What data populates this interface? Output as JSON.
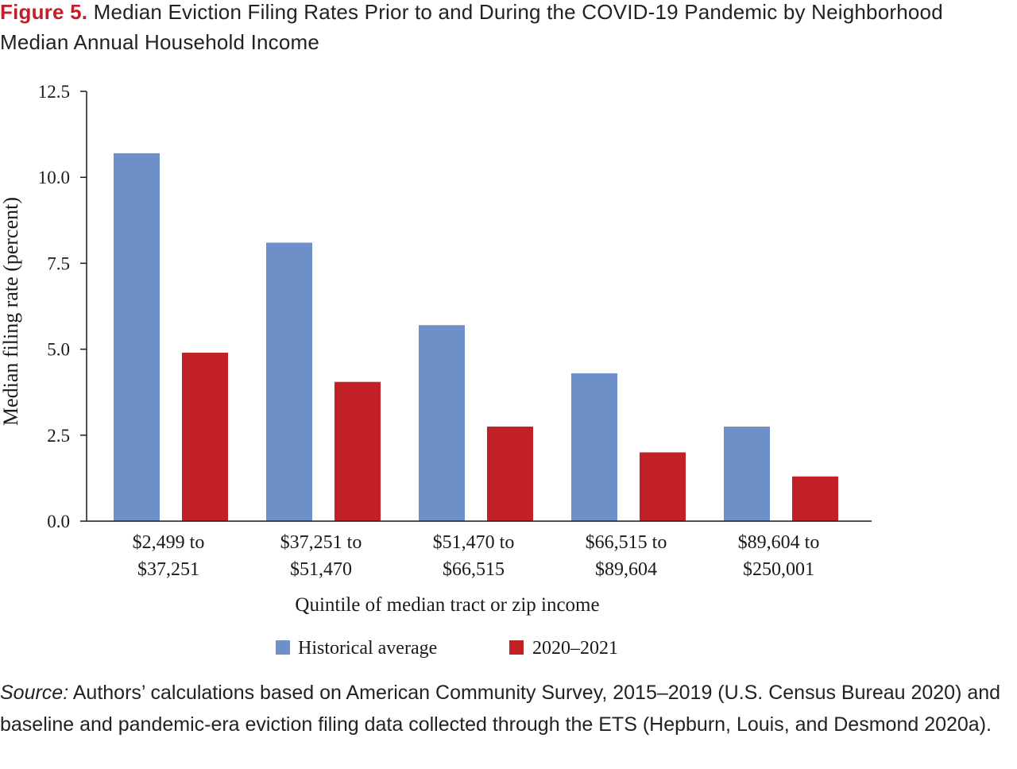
{
  "figure": {
    "label": "Figure 5.",
    "title": "Median Eviction Filing Rates Prior to and During the COVID-19 Pandemic by Neighborhood Median Annual Household Income"
  },
  "source": {
    "label": "Source:",
    "text": "Authors’ calculations based on American Community Survey, 2015–2019 (U.S. Census Bureau 2020) and baseline and pandemic-era eviction filing data collected through the ETS (Hepburn, Louis, and Desmond 2020a)."
  },
  "chart_data": {
    "type": "bar",
    "categories": [
      [
        "$2,499 to",
        "$37,251"
      ],
      [
        "$37,251 to",
        "$51,470"
      ],
      [
        "$51,470 to",
        "$66,515"
      ],
      [
        "$66,515 to",
        "$89,604"
      ],
      [
        "$89,604 to",
        "$250,001"
      ]
    ],
    "series": [
      {
        "name": "Historical average",
        "color": "#6f8fc9",
        "values": [
          10.7,
          8.1,
          5.7,
          4.3,
          2.75
        ]
      },
      {
        "name": "2020–2021",
        "color": "#c12027",
        "values": [
          4.9,
          4.05,
          2.75,
          2.0,
          1.3
        ]
      }
    ],
    "xlabel": "Quintile of median tract or zip income",
    "ylabel": "Median filing rate (percent)",
    "ylim": [
      0,
      12.5
    ],
    "yticks": [
      "0.0",
      "2.5",
      "5.0",
      "7.5",
      "10.0",
      "12.5"
    ],
    "grid": false,
    "legend_position": "bottom"
  }
}
